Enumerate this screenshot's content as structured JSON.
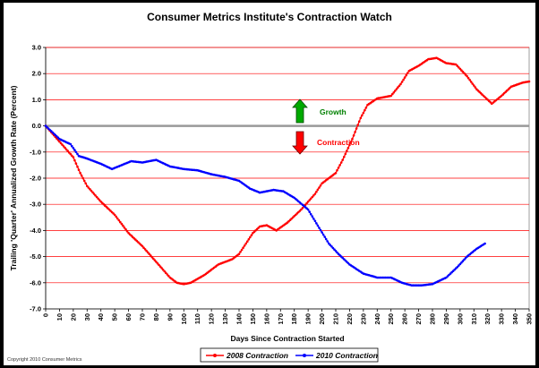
{
  "chart_data": {
    "type": "line",
    "title": "Consumer Metrics Institute's Contraction Watch",
    "xlabel": "Days Since Contraction Started",
    "ylabel": "Trailing 'Quarter' Annualized Growth Rate (Percent)",
    "xlim": [
      0,
      350
    ],
    "ylim": [
      -7.0,
      3.0
    ],
    "x_ticks": [
      "0",
      "10",
      "20",
      "30",
      "40",
      "50",
      "60",
      "70",
      "80",
      "90",
      "100",
      "110",
      "120",
      "130",
      "140",
      "150",
      "160",
      "170",
      "180",
      "190",
      "200",
      "210",
      "220",
      "230",
      "240",
      "250",
      "260",
      "270",
      "280",
      "290",
      "300",
      "310",
      "320",
      "330",
      "340",
      "350"
    ],
    "y_ticks": [
      "3.0",
      "2.0",
      "1.0",
      "0.0",
      "-1.0",
      "-2.0",
      "-3.0",
      "-4.0",
      "-5.0",
      "-6.0",
      "-7.0"
    ],
    "series": [
      {
        "name": "2008 Contraction",
        "color": "#ff0000",
        "points": [
          [
            0,
            0
          ],
          [
            10,
            -0.6
          ],
          [
            20,
            -1.2
          ],
          [
            25,
            -1.8
          ],
          [
            30,
            -2.3
          ],
          [
            40,
            -2.9
          ],
          [
            50,
            -3.4
          ],
          [
            60,
            -4.1
          ],
          [
            70,
            -4.6
          ],
          [
            80,
            -5.2
          ],
          [
            90,
            -5.8
          ],
          [
            95,
            -6.0
          ],
          [
            100,
            -6.05
          ],
          [
            105,
            -6.0
          ],
          [
            115,
            -5.7
          ],
          [
            125,
            -5.3
          ],
          [
            135,
            -5.1
          ],
          [
            140,
            -4.9
          ],
          [
            145,
            -4.5
          ],
          [
            150,
            -4.1
          ],
          [
            155,
            -3.85
          ],
          [
            160,
            -3.8
          ],
          [
            167,
            -4.0
          ],
          [
            175,
            -3.7
          ],
          [
            185,
            -3.2
          ],
          [
            195,
            -2.6
          ],
          [
            200,
            -2.2
          ],
          [
            210,
            -1.8
          ],
          [
            215,
            -1.3
          ],
          [
            222,
            -0.5
          ],
          [
            228,
            0.3
          ],
          [
            233,
            0.8
          ],
          [
            240,
            1.05
          ],
          [
            250,
            1.15
          ],
          [
            257,
            1.6
          ],
          [
            263,
            2.1
          ],
          [
            270,
            2.3
          ],
          [
            277,
            2.55
          ],
          [
            283,
            2.6
          ],
          [
            290,
            2.4
          ],
          [
            297,
            2.35
          ],
          [
            305,
            1.9
          ],
          [
            312,
            1.4
          ],
          [
            318,
            1.1
          ],
          [
            323,
            0.85
          ],
          [
            330,
            1.15
          ],
          [
            337,
            1.5
          ],
          [
            345,
            1.65
          ],
          [
            350,
            1.7
          ]
        ]
      },
      {
        "name": "2010 Contraction",
        "color": "#0000ff",
        "points": [
          [
            0,
            0
          ],
          [
            10,
            -0.5
          ],
          [
            18,
            -0.7
          ],
          [
            24,
            -1.15
          ],
          [
            30,
            -1.25
          ],
          [
            40,
            -1.45
          ],
          [
            48,
            -1.65
          ],
          [
            55,
            -1.5
          ],
          [
            62,
            -1.35
          ],
          [
            70,
            -1.4
          ],
          [
            80,
            -1.3
          ],
          [
            90,
            -1.55
          ],
          [
            100,
            -1.65
          ],
          [
            110,
            -1.7
          ],
          [
            120,
            -1.85
          ],
          [
            130,
            -1.95
          ],
          [
            140,
            -2.1
          ],
          [
            148,
            -2.4
          ],
          [
            155,
            -2.55
          ],
          [
            165,
            -2.45
          ],
          [
            172,
            -2.5
          ],
          [
            180,
            -2.75
          ],
          [
            190,
            -3.2
          ],
          [
            198,
            -3.9
          ],
          [
            205,
            -4.5
          ],
          [
            212,
            -4.9
          ],
          [
            220,
            -5.3
          ],
          [
            230,
            -5.65
          ],
          [
            240,
            -5.8
          ],
          [
            250,
            -5.8
          ],
          [
            258,
            -6.0
          ],
          [
            265,
            -6.1
          ],
          [
            272,
            -6.1
          ],
          [
            280,
            -6.05
          ],
          [
            290,
            -5.8
          ],
          [
            298,
            -5.4
          ],
          [
            305,
            -5.0
          ],
          [
            312,
            -4.7
          ],
          [
            318,
            -4.5
          ]
        ]
      }
    ],
    "annotations": [
      {
        "text": "Growth",
        "color": "#008000",
        "arrow": "up"
      },
      {
        "text": "Contraction",
        "color": "#ff0000",
        "arrow": "down"
      }
    ]
  },
  "copyright": "Copyright 2010 Consumer Metrics"
}
